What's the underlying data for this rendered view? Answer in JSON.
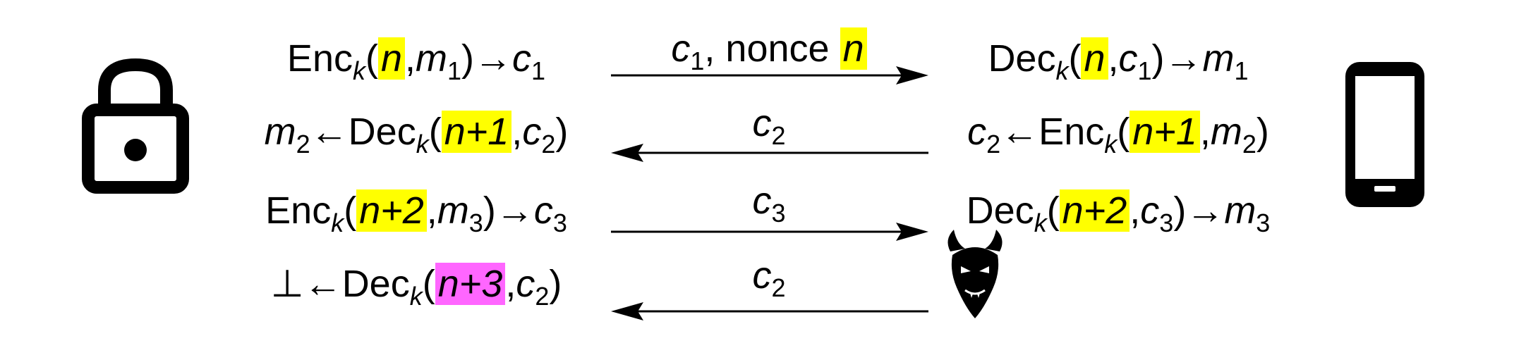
{
  "left_icon": "padlock-icon",
  "right_icon": "smartphone-icon",
  "attacker_icon": "devil-icon",
  "colors": {
    "nonce_highlight": "#ffff00",
    "replay_highlight": "#ff66ff"
  },
  "rows": [
    {
      "left": {
        "pre": "Enc",
        "k": "k",
        "open": "(",
        "nonce": "n",
        "mid": ",",
        "var": "m",
        "sub": "1",
        "close": ")→",
        "out": "c",
        "out_sub": "1"
      },
      "label": {
        "var": "c",
        "sub": "1",
        "text": ", nonce ",
        "nonce": "n"
      },
      "direction": "right",
      "right": {
        "pre": "Dec",
        "k": "k",
        "open": "(",
        "nonce": "n",
        "mid": ",",
        "var": "c",
        "sub": "1",
        "close": ")→",
        "out": "m",
        "out_sub": "1"
      }
    },
    {
      "left": {
        "res": "m",
        "res_sub": "2",
        "arrow": "←",
        "pre": "Dec",
        "k": "k",
        "open": "(",
        "nonce": "n+1",
        "mid": ",",
        "var": "c",
        "sub": "2",
        "close": ")"
      },
      "label": {
        "var": "c",
        "sub": "2"
      },
      "direction": "left",
      "right": {
        "res": "c",
        "res_sub": "2",
        "arrow": "←",
        "pre": "Enc",
        "k": "k",
        "open": "(",
        "nonce": "n+1",
        "mid": ",",
        "var": "m",
        "sub": "2",
        "close": ")"
      }
    },
    {
      "left": {
        "pre": "Enc",
        "k": "k",
        "open": "(",
        "nonce": "n+2",
        "mid": ",",
        "var": "m",
        "sub": "3",
        "close": ")→",
        "out": "c",
        "out_sub": "3"
      },
      "label": {
        "var": "c",
        "sub": "3"
      },
      "direction": "right",
      "right": {
        "pre": "Dec",
        "k": "k",
        "open": "(",
        "nonce": "n+2",
        "mid": ",",
        "var": "c",
        "sub": "3",
        "close": ")→",
        "out": "m",
        "out_sub": "3"
      }
    },
    {
      "left": {
        "res": "⊥",
        "arrow": "←",
        "pre": "Dec",
        "k": "k",
        "open": "(",
        "nonce": "n+3",
        "mid": ",",
        "var": "c",
        "sub": "2",
        "close": ")"
      },
      "label": {
        "var": "c",
        "sub": "2"
      },
      "direction": "left"
    }
  ]
}
